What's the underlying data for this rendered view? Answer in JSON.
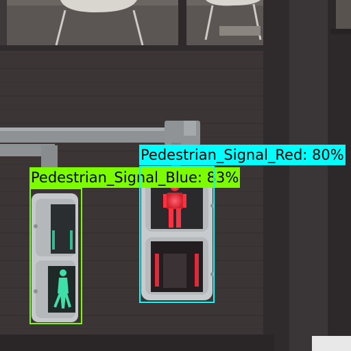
{
  "image": {
    "alt": "Two pedestrian traffic signals mounted on poles in front of a dark brick building"
  },
  "detections": [
    {
      "label": "Pedestrian_Signal_Blue: 83%",
      "class": "Pedestrian_Signal_Blue",
      "confidence": 0.83,
      "color": "#7CFC00"
    },
    {
      "label": "Pedestrian_Signal_Red: 80%",
      "class": "Pedestrian_Signal_Red",
      "confidence": 0.8,
      "color": "#00FFFF"
    }
  ],
  "colors": {
    "wall": "#3b3536",
    "window": "#5b5654",
    "pole": "#8e9294",
    "signal_housing": "#c6c9cc",
    "green_lamp": "#3fe0a8",
    "red_lamp": "#ff3040"
  }
}
